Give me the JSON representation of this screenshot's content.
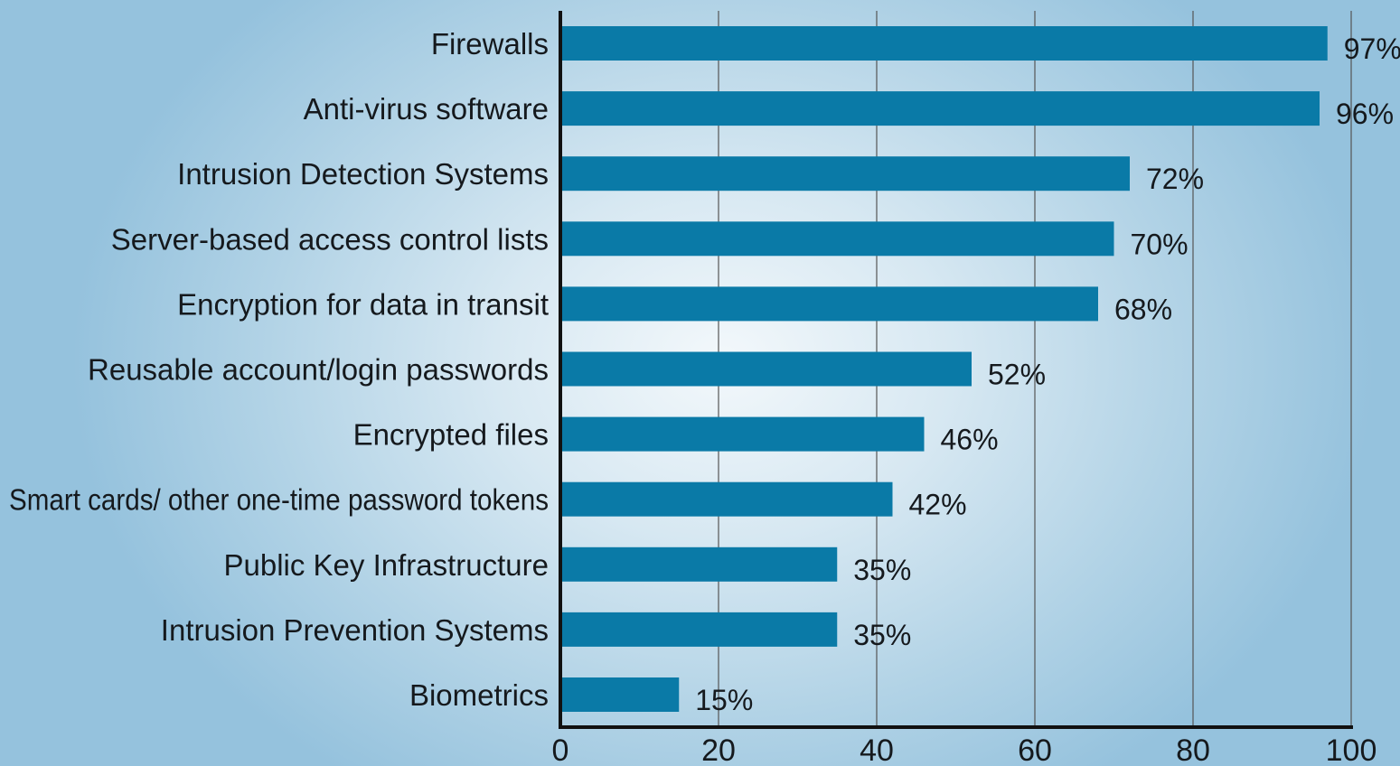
{
  "chart_data": {
    "type": "bar",
    "orientation": "horizontal",
    "categories": [
      "Firewalls",
      "Anti-virus software",
      "Intrusion Detection Systems",
      "Server-based access control lists",
      "Encryption for data in transit",
      "Reusable account/login passwords",
      "Encrypted files",
      "Smart cards/ other one-time password tokens",
      "Public Key Infrastructure",
      "Intrusion Prevention Systems",
      "Biometrics"
    ],
    "values": [
      97,
      96,
      72,
      70,
      68,
      52,
      46,
      42,
      35,
      35,
      15
    ],
    "value_labels": [
      "97%",
      "96%",
      "72%",
      "70%",
      "68%",
      "52%",
      "46%",
      "42%",
      "35%",
      "35%",
      "15%"
    ],
    "xlim": [
      0,
      100
    ],
    "xticks": [
      0,
      20,
      40,
      60,
      80,
      100
    ],
    "xtick_labels": [
      "0",
      "20",
      "40",
      "60",
      "80",
      "100"
    ],
    "grid": "vertical",
    "bar_color": "#0a7aa7",
    "axis_color": "#111111",
    "grid_color": "#555555"
  }
}
